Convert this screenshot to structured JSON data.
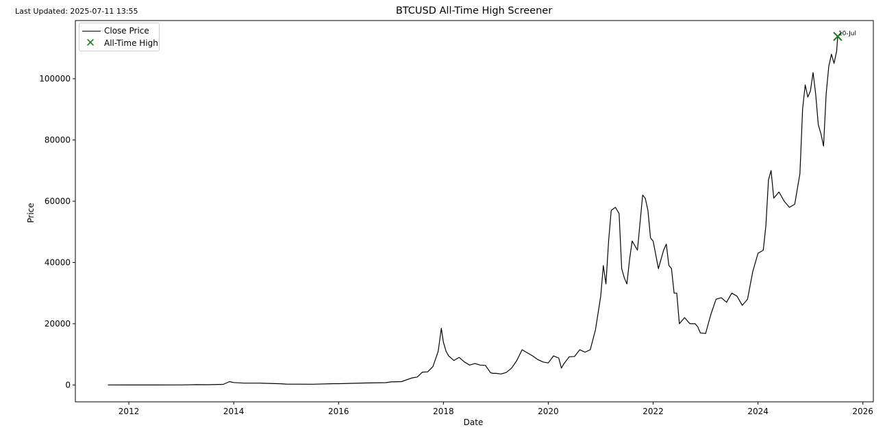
{
  "header": {
    "last_updated": "Last Updated: 2025-07-11 13:55"
  },
  "chart_data": {
    "type": "line",
    "title": "BTCUSD All-Time High Screener",
    "xlabel": "Date",
    "ylabel": "Price",
    "xlim": [
      2010.98,
      2026.2
    ],
    "ylim": [
      -5500,
      119000
    ],
    "x_ticks": [
      "2012",
      "2014",
      "2016",
      "2018",
      "2020",
      "2022",
      "2024",
      "2026"
    ],
    "y_ticks": [
      "0",
      "20000",
      "40000",
      "60000",
      "80000",
      "100000"
    ],
    "grid": false,
    "legend_position": "top-left",
    "line_color": "#000000",
    "marker_color": "#1a7f1a",
    "series": [
      {
        "name": "Close Price",
        "x": [
          2011.6,
          2012.0,
          2012.5,
          2013.0,
          2013.3,
          2013.5,
          2013.8,
          2013.92,
          2014.0,
          2014.2,
          2014.5,
          2014.9,
          2015.0,
          2015.5,
          2015.9,
          2016.0,
          2016.5,
          2016.9,
          2017.0,
          2017.2,
          2017.4,
          2017.5,
          2017.6,
          2017.7,
          2017.8,
          2017.9,
          2017.96,
          2018.0,
          2018.05,
          2018.1,
          2018.2,
          2018.3,
          2018.4,
          2018.5,
          2018.6,
          2018.7,
          2018.8,
          2018.9,
          2018.95,
          2019.0,
          2019.1,
          2019.2,
          2019.3,
          2019.4,
          2019.5,
          2019.6,
          2019.7,
          2019.8,
          2019.9,
          2020.0,
          2020.1,
          2020.2,
          2020.25,
          2020.3,
          2020.4,
          2020.5,
          2020.6,
          2020.7,
          2020.8,
          2020.9,
          2021.0,
          2021.05,
          2021.1,
          2021.15,
          2021.2,
          2021.28,
          2021.35,
          2021.4,
          2021.45,
          2021.5,
          2021.55,
          2021.6,
          2021.7,
          2021.8,
          2021.85,
          2021.9,
          2021.95,
          2022.0,
          2022.1,
          2022.2,
          2022.25,
          2022.3,
          2022.35,
          2022.4,
          2022.45,
          2022.5,
          2022.6,
          2022.7,
          2022.8,
          2022.85,
          2022.9,
          2023.0,
          2023.1,
          2023.2,
          2023.3,
          2023.4,
          2023.5,
          2023.6,
          2023.7,
          2023.8,
          2023.9,
          2024.0,
          2024.1,
          2024.15,
          2024.2,
          2024.25,
          2024.3,
          2024.4,
          2024.5,
          2024.6,
          2024.7,
          2024.8,
          2024.85,
          2024.9,
          2024.95,
          2025.0,
          2025.05,
          2025.1,
          2025.15,
          2025.2,
          2025.25,
          2025.3,
          2025.35,
          2025.4,
          2025.45,
          2025.5,
          2025.52
        ],
        "y": [
          10,
          5,
          8,
          15,
          100,
          80,
          200,
          1100,
          800,
          600,
          600,
          400,
          300,
          250,
          430,
          430,
          650,
          750,
          1000,
          1100,
          2300,
          2600,
          4200,
          4300,
          6000,
          11000,
          18500,
          14000,
          11000,
          9500,
          8000,
          9000,
          7500,
          6500,
          7000,
          6500,
          6400,
          4000,
          3800,
          3800,
          3600,
          4100,
          5500,
          8000,
          11500,
          10500,
          9500,
          8300,
          7500,
          7200,
          9500,
          8800,
          5500,
          7000,
          9200,
          9300,
          11500,
          10700,
          11500,
          18000,
          29000,
          39000,
          33000,
          47000,
          57000,
          58000,
          56000,
          38000,
          35000,
          33000,
          41000,
          47000,
          44000,
          62000,
          61000,
          57000,
          48000,
          47000,
          38000,
          44000,
          46000,
          39000,
          38000,
          30000,
          30000,
          20000,
          22000,
          20000,
          20000,
          19000,
          17000,
          16800,
          23000,
          28000,
          28500,
          27000,
          30000,
          29000,
          26000,
          28000,
          37000,
          43000,
          44000,
          52000,
          67000,
          70000,
          61000,
          63000,
          60000,
          58000,
          59000,
          69000,
          90000,
          98000,
          94000,
          96000,
          102000,
          95000,
          85000,
          82000,
          78000,
          95000,
          104000,
          108000,
          105000,
          109000,
          113800
        ]
      },
      {
        "name": "All-Time High",
        "x": [
          2025.52
        ],
        "y": [
          113800
        ]
      }
    ],
    "annotations": [
      {
        "text": "10-Jul",
        "x": 2025.52,
        "y": 113800
      }
    ]
  }
}
